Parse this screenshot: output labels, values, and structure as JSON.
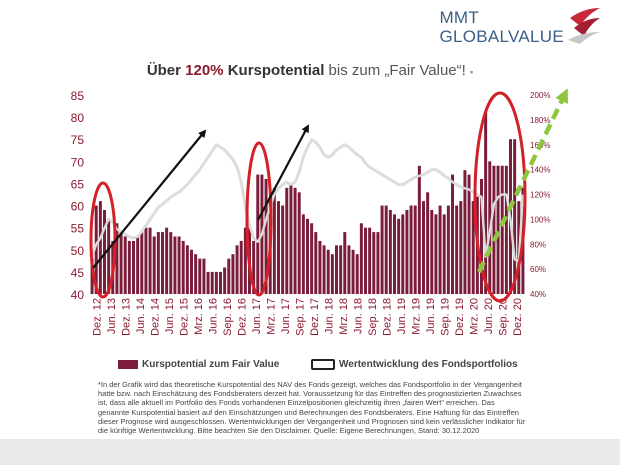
{
  "header": {
    "brand_line1": "MMT",
    "brand_line2": "GLOBALVALUE",
    "title_part1": "Über ",
    "title_pct": "120%",
    "title_part2": " Kurspotential",
    "title_part3": " bis zum „Fair Value“! ",
    "title_marker": "▪"
  },
  "legend": {
    "bars_label": "Kurspotential zum Fair Value",
    "line_label": "Wertentwicklung des Fondsportfolios"
  },
  "footnote": "*In der Grafik wird das theoretische Kurspotential des NAV des Fonds gezeigt, welches das Fondsportfolio in der Vergangenheit hatte bzw. nach Einschätzung des Fondsberaters derzeit hat. Voraussetzung für das Eintreffen des prognostizierten Zuwachses ist, dass alle aktuell im Portfolio des Fonds vorhandenen Einzelpositionen gleichzeitig ihren „fairen Wert“ erreichen. Das genannte Kurspotential basiert auf den Einschätzungen und Berechnungen des Fondsberaters. Eine Haftung für das Eintreffen dieser Prognose wird ausgeschlossen. Wertentwicklungen der Vergangenheit und Prognosen sind kein verlässlicher Indikator für die künftige Wertentwicklung. Bitte beachten Sie den Disclaimer. Quelle: Eigene Berechnungen, Stand: 30.12.2020",
  "colors": {
    "bars": "#7a1c3a",
    "line": "#dcdcdc",
    "ellipse": "#d42027",
    "arrow": "#111111",
    "green_arrow": "#8dc63f",
    "brand": "#3b5f87"
  },
  "chart_data": {
    "type": "bar",
    "ylim": [
      40,
      85
    ],
    "y2lim": [
      40,
      200
    ],
    "yticks": [
      40,
      45,
      50,
      55,
      60,
      65,
      70,
      75,
      80,
      85
    ],
    "y2ticks": [
      "40%",
      "60%",
      "80%",
      "100%",
      "120%",
      "140%",
      "160%",
      "180%",
      "200%"
    ],
    "x_tick_labels": [
      "Dez. 12",
      "Jun. 13",
      "Dez. 13",
      "Jun. 14",
      "Dez. 14",
      "Jun. 15",
      "Dez. 15",
      "Mrz. 16",
      "Jun. 16",
      "Sep. 16",
      "Dez. 16",
      "Jun. 17",
      "Mrz. 17",
      "Jun. 17",
      "Sep. 17",
      "Dez. 17",
      "Jun. 18",
      "Mrz. 18",
      "Jun. 18",
      "Sep. 18",
      "Dez. 18",
      "Jun. 19",
      "Mrz. 19",
      "Jun. 19",
      "Sep. 19",
      "Dez. 19",
      "Mrz. 20",
      "Jun. 20",
      "Sep. 20",
      "Dez. 20"
    ],
    "series": [
      {
        "name": "Kurspotential zum Fair Value",
        "values": [
          48,
          60,
          61,
          59,
          57,
          52,
          56,
          54,
          53,
          52,
          52,
          53,
          54,
          55,
          55,
          53,
          54,
          54,
          55,
          54,
          53,
          53,
          52,
          51,
          50,
          49,
          48,
          48,
          45,
          45,
          45,
          45,
          46,
          48,
          49,
          51,
          52,
          55,
          55,
          52,
          67,
          67,
          66,
          61,
          64,
          61,
          60,
          64,
          65,
          64,
          63,
          58,
          57,
          56,
          54,
          52,
          51,
          50,
          49,
          51,
          51,
          54,
          51,
          50,
          49,
          56,
          55,
          55,
          54,
          54,
          60,
          60,
          59,
          58,
          57,
          58,
          59,
          60,
          60,
          69,
          61,
          63,
          59,
          58,
          60,
          58,
          60,
          67,
          60,
          61,
          68,
          67,
          61,
          62,
          66,
          81,
          70,
          69,
          69,
          69,
          69,
          75,
          75,
          61,
          64
        ]
      },
      {
        "name": "Wertentwicklung des Fondsportfolios",
        "values": [
          70,
          80,
          85,
          93,
          100,
          98,
          92,
          90,
          88,
          86,
          85,
          86,
          90,
          95,
          100,
          105,
          110,
          112,
          115,
          118,
          120,
          122,
          125,
          128,
          132,
          136,
          140,
          145,
          150,
          155,
          160,
          158,
          156,
          152,
          148,
          142,
          130,
          110,
          95,
          85,
          82,
          88,
          100,
          110,
          120,
          125,
          128,
          130,
          128,
          130,
          138,
          150,
          158,
          164,
          162,
          158,
          152,
          150,
          152,
          156,
          158,
          160,
          158,
          155,
          152,
          150,
          145,
          142,
          140,
          138,
          136,
          134,
          132,
          130,
          128,
          128,
          130,
          132,
          134,
          135,
          136,
          138,
          140,
          140,
          138,
          135,
          133,
          130,
          128,
          126,
          125,
          124,
          122,
          120,
          118,
          70,
          90,
          112,
          118,
          120,
          120,
          100,
          68,
          66,
          120
        ]
      }
    ]
  }
}
